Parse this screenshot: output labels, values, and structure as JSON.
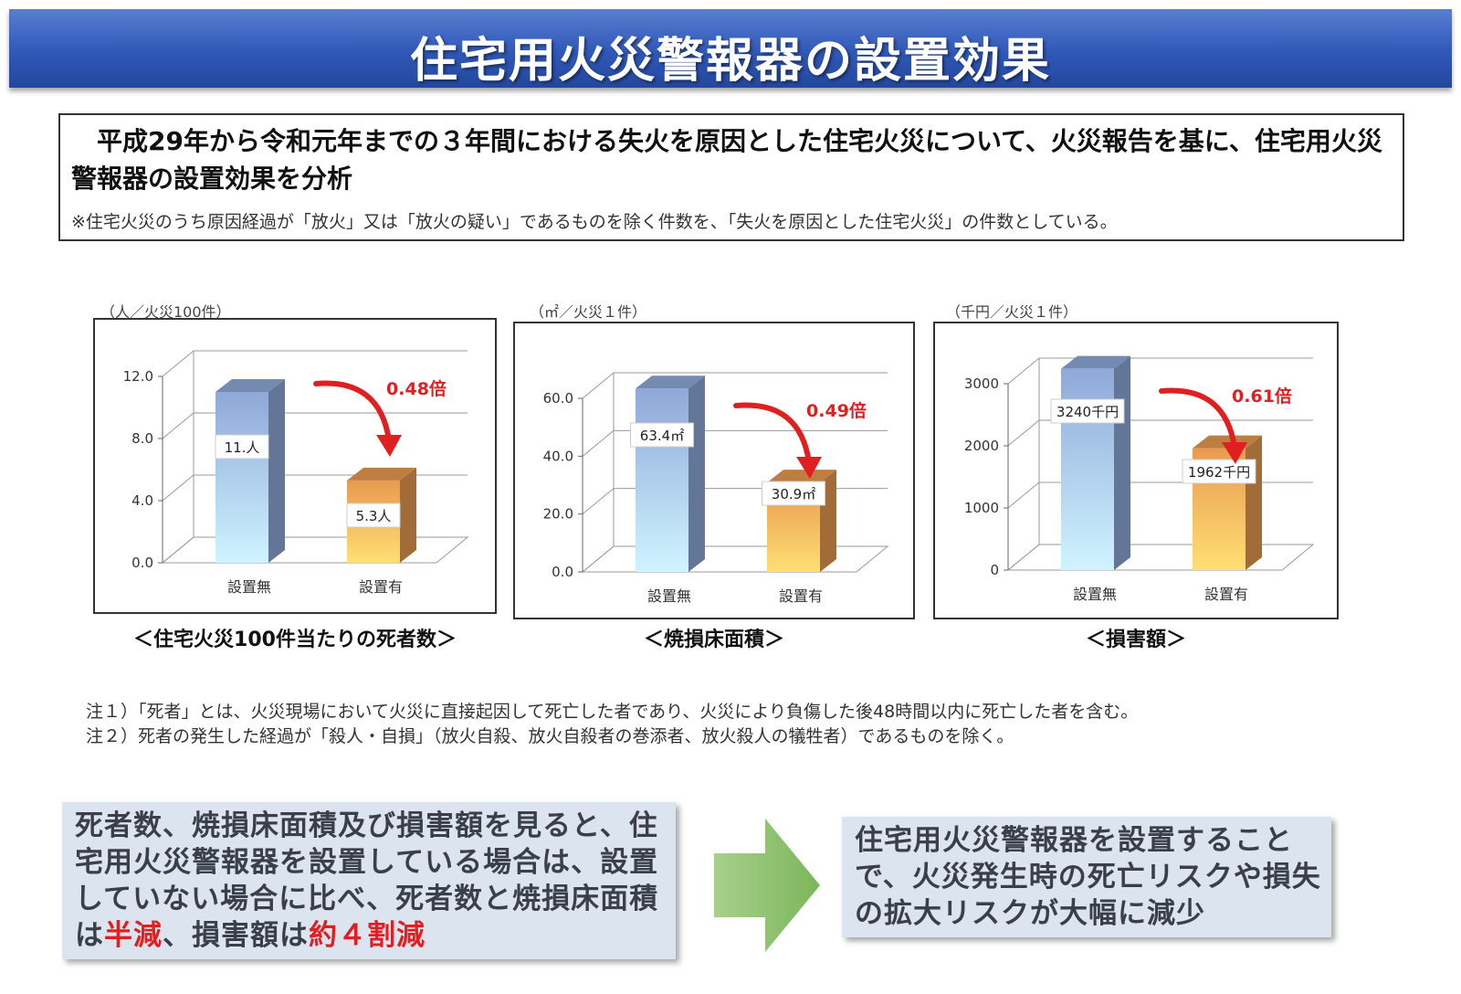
{
  "page": {
    "title": "住宅用火災警報器の設置効果",
    "summary": "平成29年から令和元年までの３年間における失火を原因とした住宅火災について、火災報告を基に、住宅用火災警報器の設置効果を分析",
    "summary_note": "※住宅火災のうち原因経過が「放火」又は「放火の疑い」であるものを除く件数を、「失火を原因とした住宅火災」の件数としている。",
    "notes": [
      "注１）「死者」とは、火災現場において火災に直接起因して死亡した者であり、火災により負傷した後48時間以内に死亡した者を含む。",
      "注２）死者の発生した経過が「殺人・自損」（放火自殺、放火自殺者の巻添者、放火殺人の犠牲者）であるものを除く。"
    ],
    "conclusion_left": {
      "pre": "死者数、焼損床面積及び損害額を見ると、住宅用火災警報器を設置している場合は、設置していない場合に比べ、死者数と焼損床面積は",
      "hl1": "半減",
      "mid": "、損害額は",
      "hl2": "約４割減"
    },
    "conclusion_right": "住宅用火災警報器を設置することで、火災発生時の死亡リスクや損失の拡大リスクが大幅に減少",
    "colors": {
      "banner": "#2f58b8",
      "bar_without": "#8fa8d8",
      "bar_with": "#e89a50",
      "ratio": "#e02020",
      "box": "#dce4ef",
      "arrow": "#8cc06a"
    }
  },
  "chart_data": [
    {
      "type": "bar",
      "unit": "（人／火災100件）",
      "caption": "＜住宅火災100件当たりの死者数＞",
      "categories": [
        "設置無",
        "設置有"
      ],
      "values": [
        11,
        5.3
      ],
      "data_labels": [
        "11.人",
        "5.3人"
      ],
      "ratio_label": "0.48倍",
      "ylim": [
        0,
        12
      ],
      "yticks": [
        "0.0",
        "4.0",
        "8.0",
        "12.0"
      ],
      "ytick_values": [
        0,
        4,
        8,
        12
      ],
      "grid": true
    },
    {
      "type": "bar",
      "unit": "（㎡／火災１件）",
      "caption": "＜焼損床面積＞",
      "categories": [
        "設置無",
        "設置有"
      ],
      "values": [
        63.4,
        30.9
      ],
      "data_labels": [
        "63.4㎡",
        "30.9㎡"
      ],
      "ratio_label": "0.49倍",
      "ylim": [
        0,
        60
      ],
      "yticks": [
        "0.0",
        "20.0",
        "40.0",
        "60.0"
      ],
      "ytick_values": [
        0,
        20,
        40,
        60
      ],
      "grid": true
    },
    {
      "type": "bar",
      "unit": "（千円／火災１件）",
      "caption": "＜損害額＞",
      "categories": [
        "設置無",
        "設置有"
      ],
      "values": [
        3240,
        1962
      ],
      "data_labels": [
        "3240千円",
        "1962千円"
      ],
      "ratio_label": "0.61倍",
      "ylim": [
        0,
        3000
      ],
      "yticks": [
        "0",
        "1000",
        "2000",
        "3000"
      ],
      "ytick_values": [
        0,
        1000,
        2000,
        3000
      ],
      "grid": true
    }
  ]
}
